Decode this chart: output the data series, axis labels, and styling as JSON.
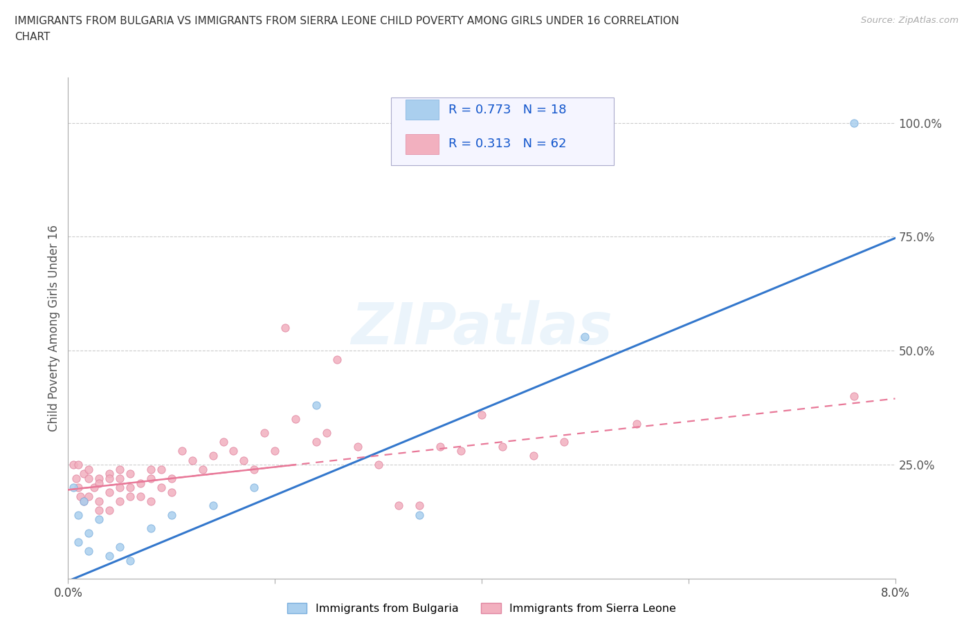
{
  "title_line1": "IMMIGRANTS FROM BULGARIA VS IMMIGRANTS FROM SIERRA LEONE CHILD POVERTY AMONG GIRLS UNDER 16 CORRELATION",
  "title_line2": "CHART",
  "source": "Source: ZipAtlas.com",
  "ylabel": "Child Poverty Among Girls Under 16",
  "x_min": 0.0,
  "x_max": 0.08,
  "y_min": 0.0,
  "y_max": 1.1,
  "x_ticks": [
    0.0,
    0.02,
    0.04,
    0.06,
    0.08
  ],
  "x_tick_labels": [
    "0.0%",
    "",
    "",
    "",
    "8.0%"
  ],
  "y_ticks": [
    0.25,
    0.5,
    0.75,
    1.0
  ],
  "y_tick_labels": [
    "25.0%",
    "50.0%",
    "75.0%",
    "100.0%"
  ],
  "grid_color": "#cccccc",
  "watermark": "ZIPatlas",
  "bulgaria_color": "#aacfee",
  "bulgaria_edge": "#7aaedd",
  "sierra_color": "#f2b0bf",
  "sierra_edge": "#e085a0",
  "line_bulgaria": "#3377cc",
  "line_sierra": "#e87898",
  "R_bulgaria": 0.773,
  "N_bulgaria": 18,
  "R_sierra": 0.313,
  "N_sierra": 62,
  "bulgaria_x": [
    0.0005,
    0.001,
    0.001,
    0.0015,
    0.002,
    0.002,
    0.003,
    0.004,
    0.005,
    0.006,
    0.008,
    0.01,
    0.014,
    0.018,
    0.024,
    0.034,
    0.05,
    0.076
  ],
  "bulgaria_y": [
    0.2,
    0.08,
    0.14,
    0.17,
    0.06,
    0.1,
    0.13,
    0.05,
    0.07,
    0.04,
    0.11,
    0.14,
    0.16,
    0.2,
    0.38,
    0.14,
    0.53,
    1.0
  ],
  "sierra_x": [
    0.0005,
    0.0008,
    0.001,
    0.001,
    0.0012,
    0.0015,
    0.0015,
    0.002,
    0.002,
    0.002,
    0.0025,
    0.003,
    0.003,
    0.003,
    0.003,
    0.004,
    0.004,
    0.004,
    0.004,
    0.005,
    0.005,
    0.005,
    0.005,
    0.006,
    0.006,
    0.006,
    0.007,
    0.007,
    0.008,
    0.008,
    0.008,
    0.009,
    0.009,
    0.01,
    0.01,
    0.011,
    0.012,
    0.013,
    0.014,
    0.015,
    0.016,
    0.017,
    0.018,
    0.019,
    0.02,
    0.021,
    0.022,
    0.024,
    0.025,
    0.026,
    0.028,
    0.03,
    0.032,
    0.034,
    0.036,
    0.038,
    0.04,
    0.042,
    0.045,
    0.048,
    0.055,
    0.076
  ],
  "sierra_y": [
    0.25,
    0.22,
    0.25,
    0.2,
    0.18,
    0.23,
    0.17,
    0.22,
    0.18,
    0.24,
    0.2,
    0.22,
    0.17,
    0.21,
    0.15,
    0.23,
    0.19,
    0.15,
    0.22,
    0.2,
    0.22,
    0.17,
    0.24,
    0.2,
    0.18,
    0.23,
    0.18,
    0.21,
    0.24,
    0.17,
    0.22,
    0.2,
    0.24,
    0.19,
    0.22,
    0.28,
    0.26,
    0.24,
    0.27,
    0.3,
    0.28,
    0.26,
    0.24,
    0.32,
    0.28,
    0.55,
    0.35,
    0.3,
    0.32,
    0.48,
    0.29,
    0.25,
    0.16,
    0.16,
    0.29,
    0.28,
    0.36,
    0.29,
    0.27,
    0.3,
    0.34,
    0.4
  ],
  "bg_color": "#ffffff",
  "legend_face": "#f5f5ff",
  "legend_edge": "#aaaacc"
}
